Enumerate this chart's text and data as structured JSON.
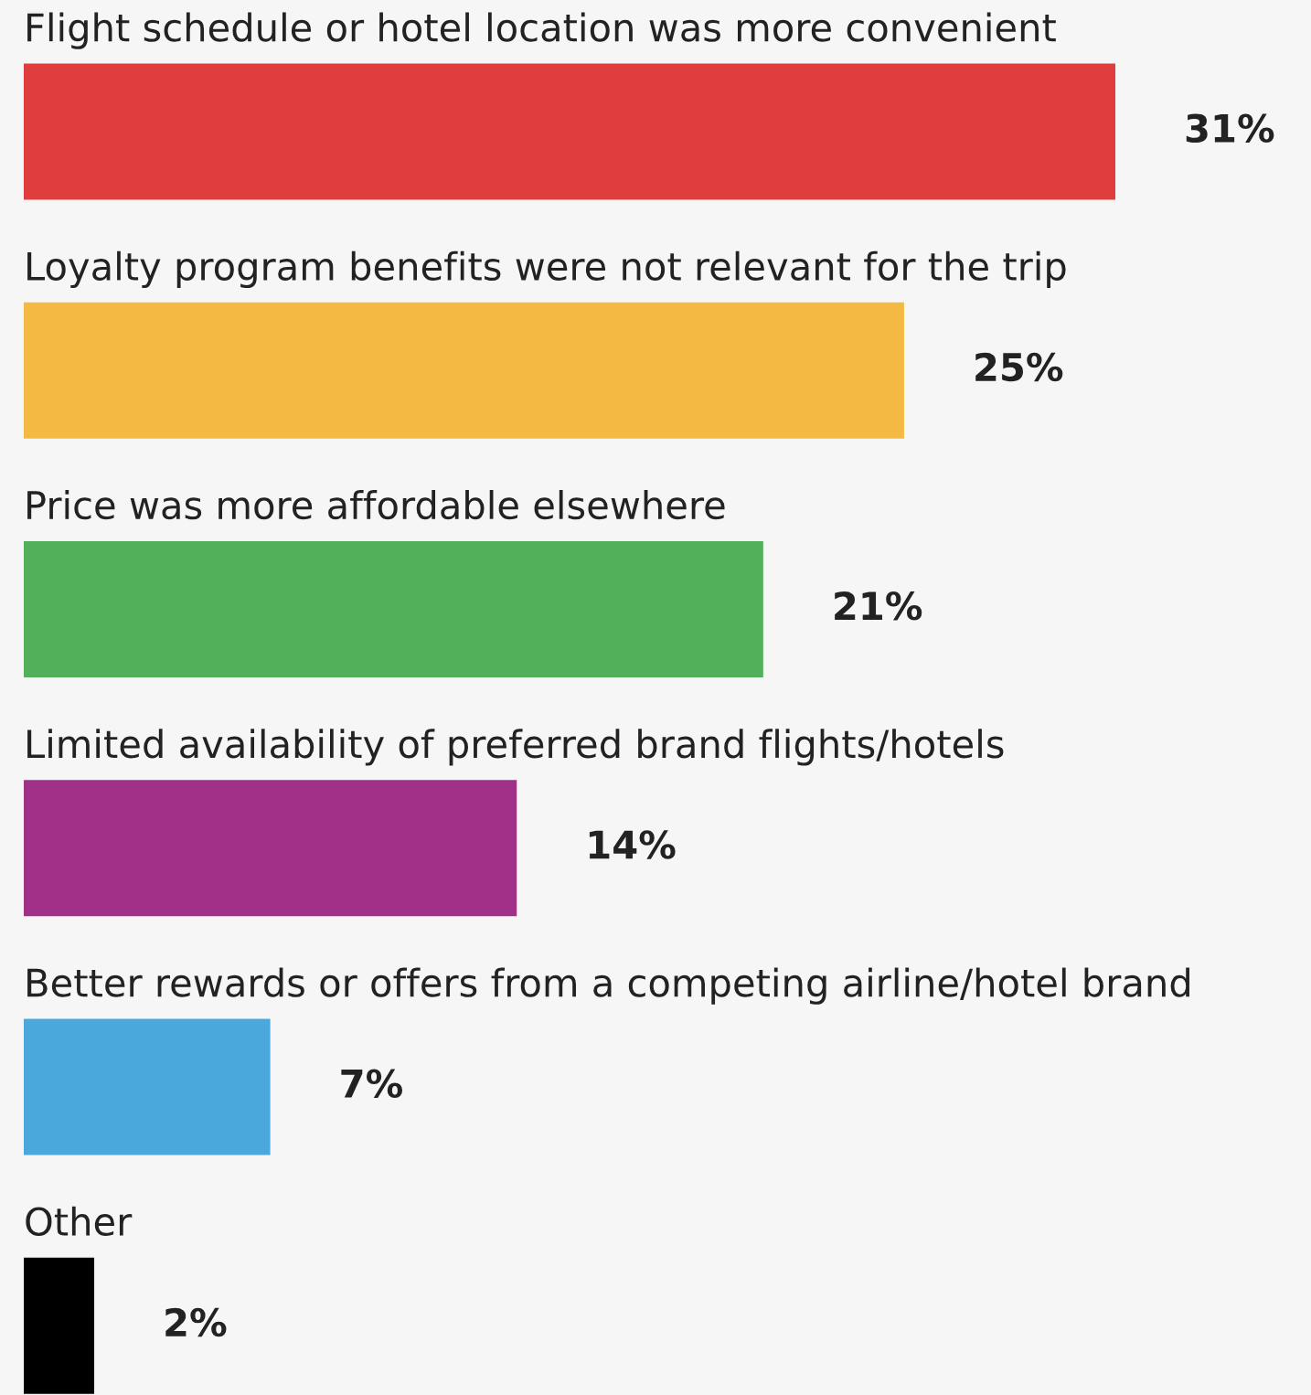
{
  "chart_data": {
    "type": "bar",
    "orientation": "horizontal",
    "categories": [
      "Flight schedule or hotel location was more convenient",
      "Loyalty program benefits were not relevant for the trip",
      "Price was more affordable elsewhere",
      "Limited availability of preferred brand flights/hotels",
      "Better rewards or offers from a competing airline/hotel brand",
      "Other"
    ],
    "values": [
      31,
      25,
      21,
      14,
      7,
      2
    ],
    "colors": [
      "#e03e3e",
      "#f4b942",
      "#52b05a",
      "#a03088",
      "#4aa8dc",
      "#000000"
    ],
    "value_labels": [
      "31%",
      "25%",
      "21%",
      "14%",
      "7%",
      "2%"
    ]
  }
}
